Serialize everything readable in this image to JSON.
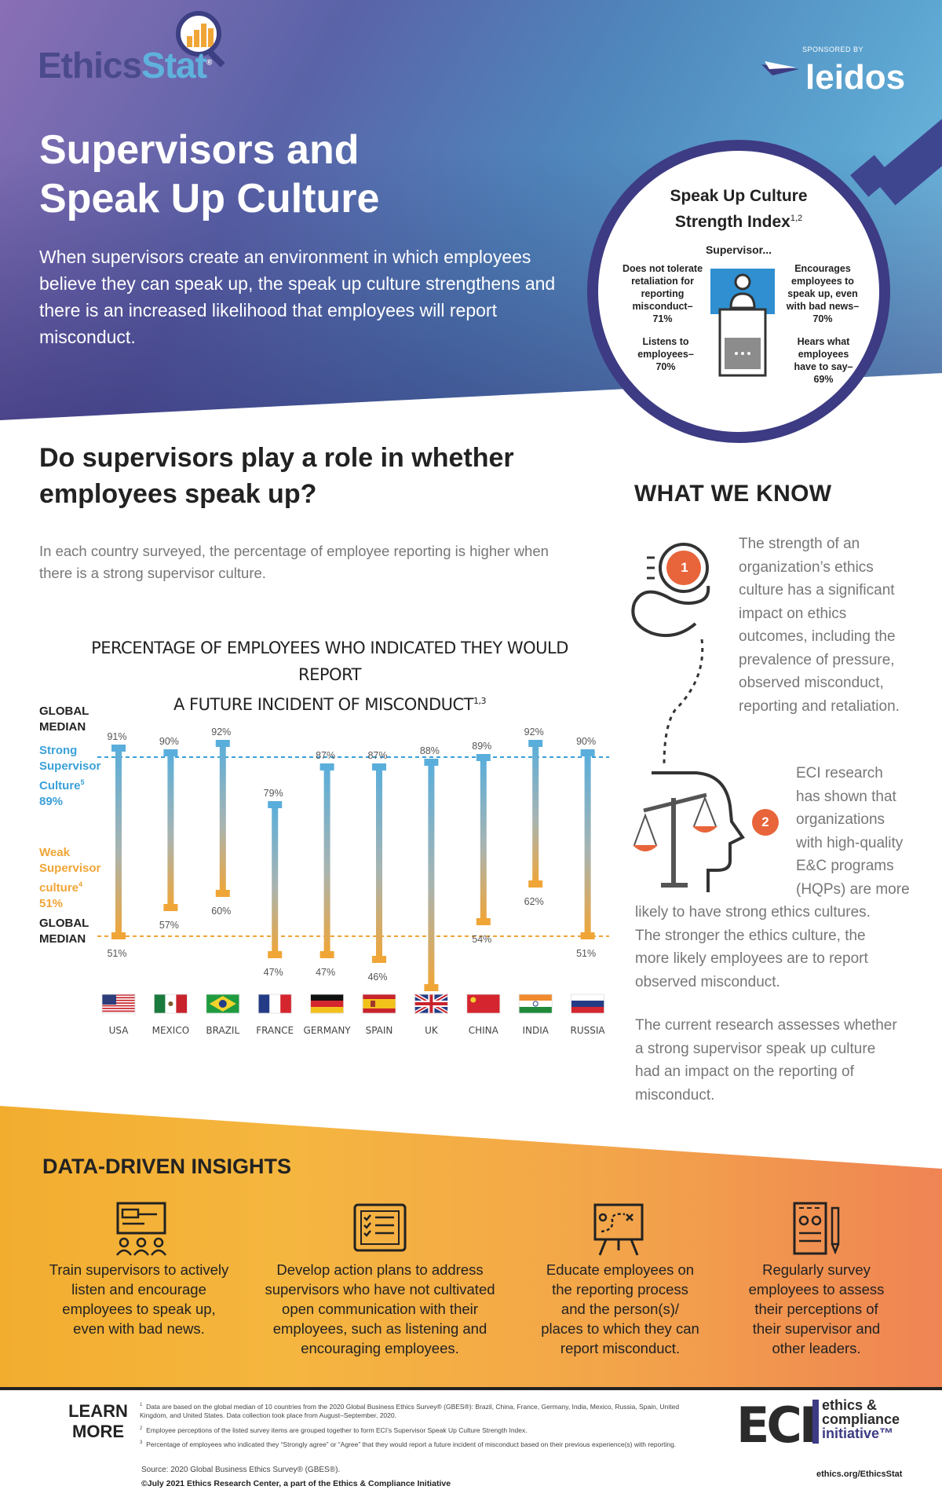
{
  "header": {
    "logo_ethics": "Ethics",
    "logo_stat": "Stat",
    "logo_reg": "®",
    "sponsor_label": "SPONSORED BY",
    "sponsor_name": "leidos",
    "title_line1": "Supervisors and",
    "title_line2": "Speak Up Culture",
    "intro": "When supervisors create an environment in which employees believe they can speak up, the speak up culture strengthens and there is an increased likelihood that employees will report misconduct."
  },
  "index_circle": {
    "title_line1": "Speak Up Culture",
    "title_line2": "Strength Index",
    "title_sup": "1,2",
    "subtitle": "Supervisor...",
    "items": [
      {
        "line1": "Does not tolerate",
        "line2": "retaliation for",
        "line3": "reporting",
        "line4": "misconduct–",
        "line5": "71%"
      },
      {
        "line1": "Encourages",
        "line2": "employees to",
        "line3": "speak up, even",
        "line4": "with bad news–",
        "line5": "70%"
      },
      {
        "line1": "Listens to",
        "line2": "employees–",
        "line3": "70%"
      },
      {
        "line1": "Hears what",
        "line2": "employees",
        "line3": "have to say–",
        "line4": "69%"
      }
    ]
  },
  "question": {
    "line1": "Do supervisors play a role in whether",
    "line2": "employees speak up?",
    "text": "In each country surveyed, the percentage of employee reporting is higher when there is a strong supervisor culture."
  },
  "chart_data": {
    "type": "range-bar",
    "title_line1": "PERCENTAGE OF EMPLOYEES WHO INDICATED THEY WOULD REPORT",
    "title_line2": "A FUTURE INCIDENT OF MISCONDUCT",
    "title_sup": "1,3",
    "categories": [
      "USA",
      "MEXICO",
      "BRAZIL",
      "FRANCE",
      "GERMANY",
      "SPAIN",
      "UK",
      "CHINA",
      "INDIA",
      "RUSSIA"
    ],
    "series": [
      {
        "name": "Strong Supervisor Culture",
        "values": [
          91,
          90,
          92,
          79,
          87,
          87,
          88,
          89,
          92,
          90
        ],
        "labels": [
          "91%",
          "90%",
          "92%",
          "79%",
          "87%",
          "87%",
          "88%",
          "89%",
          "92%",
          "90%"
        ]
      },
      {
        "name": "Weak Supervisor culture",
        "values": [
          51,
          57,
          60,
          47,
          47,
          46,
          40,
          54,
          62,
          51
        ],
        "labels": [
          "51%",
          "57%",
          "60%",
          "47%",
          "47%",
          "46%",
          "40%",
          "54%",
          "62%",
          "51%"
        ]
      }
    ],
    "global_median_strong": 89,
    "global_median_weak": 51,
    "global_median_label_line1": "GLOBAL",
    "global_median_label_line2": "MEDIAN",
    "strong_label_line1": "Strong",
    "strong_label_line2": "Supervisor",
    "strong_label_line3": "Culture",
    "strong_sup": "5",
    "strong_value": "89%",
    "weak_label_line1": "Weak",
    "weak_label_line2": "Supervisor",
    "weak_label_line3": "culture",
    "weak_sup": "4",
    "weak_value": "51%",
    "ylim": [
      35,
      95
    ],
    "colors": {
      "strong": "#5aaedb",
      "weak": "#f0a537",
      "median_strong": "#3aa0d8",
      "median_weak": "#f0a537"
    }
  },
  "what_we_know": {
    "title": "WHAT WE KNOW",
    "badge1": "1",
    "badge2": "2",
    "p1_lines": [
      "The strength of an",
      "organization’s ethics",
      "culture has a significant",
      "impact on ethics",
      "outcomes, including the",
      "prevalence of pressure,",
      "observed misconduct,",
      "reporting and retaliation."
    ],
    "p2_lines": [
      "ECI research",
      "has shown that",
      "organizations",
      "with high-quality",
      "E&C programs",
      "(HQPs) are more"
    ],
    "p2_cont_lines": [
      "likely to have strong ethics cultures.",
      "The stronger the ethics culture, the",
      "more likely employees are to report",
      "observed misconduct."
    ],
    "p3_lines": [
      "The current research assesses whether",
      "a strong supervisor speak up culture",
      "had an impact on the reporting of",
      "misconduct."
    ]
  },
  "insights": {
    "title": "DATA-DRIVEN INSIGHTS",
    "items": [
      {
        "icon": "presentation-icon",
        "lines": [
          "Train supervisors to actively",
          "listen and encourage",
          "employees to speak up,",
          "even with bad news."
        ]
      },
      {
        "icon": "tablet-checklist-icon",
        "lines": [
          "Develop action plans to address",
          "supervisors who have not cultivated",
          "open communication with their",
          "employees, such as listening and",
          "encouraging employees."
        ]
      },
      {
        "icon": "easel-plan-icon",
        "lines": [
          "Educate employees on",
          "the reporting process",
          "and the person(s)/",
          "places to which they can",
          "report misconduct."
        ]
      },
      {
        "icon": "survey-clipboard-icon",
        "lines": [
          "Regularly survey",
          "employees to assess",
          "their perceptions of",
          "their supervisor and",
          "other leaders."
        ]
      }
    ]
  },
  "footer": {
    "learn_line1": "LEARN",
    "learn_line2": "MORE",
    "notes": [
      {
        "num": "1",
        "text": "Data are based on the global median of 10 countries from the 2020 Global Business Ethics Survey® (GBES®): Brazil, China, France, Germany, India, Mexico, Russia, Spain, United Kingdom, and United States. Data collection took place from August–September, 2020."
      },
      {
        "num": "2",
        "text": "Employee perceptions of the listed survey items are grouped together to form ECI’s Supervisor Speak Up Culture Strength Index."
      },
      {
        "num": "3",
        "text": "Percentage of employees who indicated they “Strongly agree” or “Agree” that they would report a future incident of misconduct based on their previous experience(s) with reporting."
      }
    ],
    "source": "Source: 2020 Global Business Ethics Survey® (GBES®).",
    "copyright": "©July 2021 Ethics Research Center, a part of the Ethics & Compliance Initiative",
    "eci_mark": "ECI",
    "eci_line1": "ethics &",
    "eci_line2": "compliance",
    "eci_line3": "initiative™",
    "url": "ethics.org/EthicsStat"
  }
}
